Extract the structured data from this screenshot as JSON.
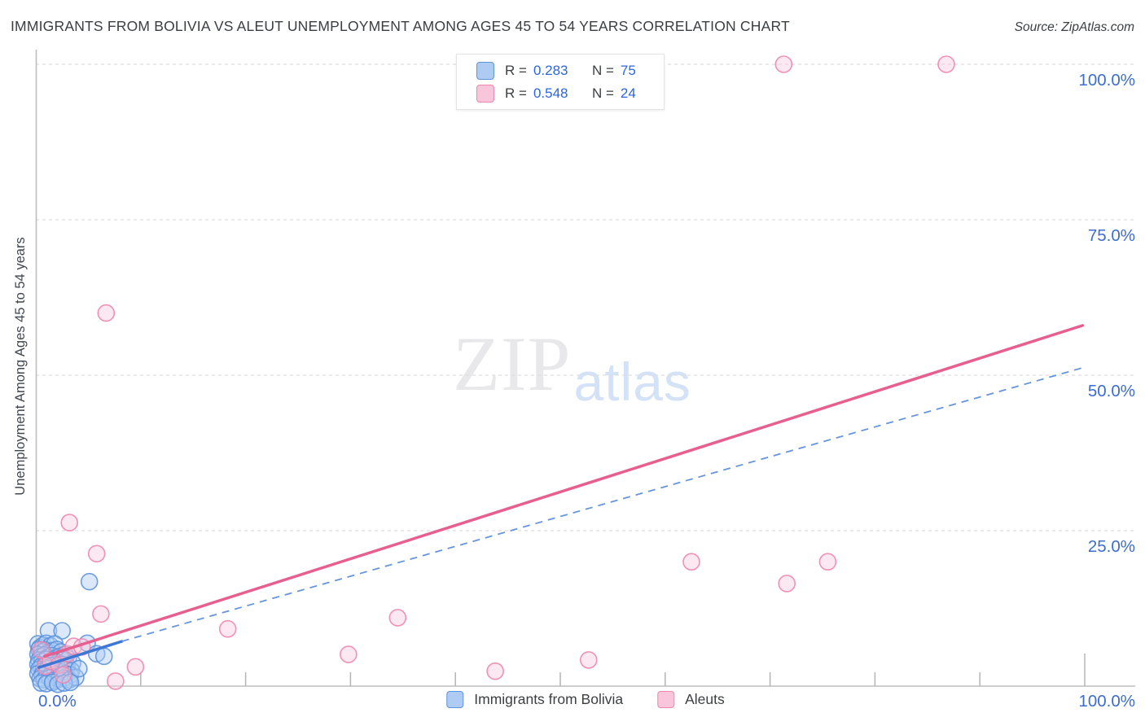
{
  "header": {
    "title": "IMMIGRANTS FROM BOLIVIA VS ALEUT UNEMPLOYMENT AMONG AGES 45 TO 54 YEARS CORRELATION CHART",
    "source": "Source: ZipAtlas.com"
  },
  "legend_box": {
    "rows": [
      {
        "label_r": "R =",
        "value_r": "0.283",
        "label_n": "N =",
        "value_n": "75"
      },
      {
        "label_r": "R =",
        "value_r": "0.548",
        "label_n": "N =",
        "value_n": "24"
      }
    ]
  },
  "axes": {
    "y_label": "Unemployment Among Ages 45 to 54 years",
    "x_min_label": "0.0%",
    "x_max_label": "100.0%"
  },
  "watermark": {
    "part1": "ZIP",
    "part2": "atlas"
  },
  "bottom_legend": {
    "items": [
      {
        "label": "Immigrants from Bolivia"
      },
      {
        "label": "Aleuts"
      }
    ]
  },
  "chart_data": {
    "type": "scatter",
    "title": "Immigrants from Bolivia vs Aleut Unemployment Among Ages 45 to 54 years",
    "xlabel": "Immigrants from Bolivia (%)",
    "ylabel": "Unemployment Among Ages 45 to 54 years (%)",
    "xlim": [
      0,
      100
    ],
    "ylim": [
      0,
      100
    ],
    "grid": true,
    "x_tick_values": [
      10,
      20,
      30,
      40,
      50,
      60,
      70,
      80,
      90,
      100
    ],
    "y_ticks": [
      {
        "label": "100.0%",
        "value": 100
      },
      {
        "label": "75.0%",
        "value": 75
      },
      {
        "label": "50.0%",
        "value": 50
      },
      {
        "label": "25.0%",
        "value": 25
      }
    ],
    "style": {
      "grid_color": "#dedede",
      "axis_border_color": "#bdbdbd",
      "tick_color": "#b5b5b5",
      "axis_value_color": "#3d6dce",
      "stat_value_color": "#2b65e0",
      "text_color": "#3c4043"
    },
    "series": [
      {
        "name": "Immigrants from Bolivia",
        "r": 0.283,
        "n": 75,
        "fill": "#aecbf3",
        "fill_opacity": 0.45,
        "stroke": "#5e93dd",
        "trend": {
          "solid": [
            [
              0.3,
              3.0
            ],
            [
              8.2,
              7.2
            ]
          ],
          "dashed": [
            [
              8.2,
              7.2
            ],
            [
              99.8,
              51.2
            ]
          ],
          "color": "#3d76d4",
          "dash_color": "#6695dd"
        },
        "points": [
          [
            5.1,
            16.8
          ],
          [
            1.2,
            8.9
          ],
          [
            2.5,
            8.9
          ],
          [
            4.9,
            6.9
          ],
          [
            5.8,
            5.2
          ],
          [
            6.5,
            4.8
          ],
          [
            0.2,
            6.8
          ],
          [
            0.4,
            6.2
          ],
          [
            0.7,
            6.6
          ],
          [
            1.0,
            6.9
          ],
          [
            1.4,
            6.5
          ],
          [
            1.8,
            6.8
          ],
          [
            0.3,
            5.9
          ],
          [
            0.6,
            5.5
          ],
          [
            0.9,
            5.8
          ],
          [
            1.2,
            5.4
          ],
          [
            1.6,
            5.7
          ],
          [
            2.0,
            5.9
          ],
          [
            2.4,
            5.5
          ],
          [
            0.2,
            5.1
          ],
          [
            0.5,
            4.8
          ],
          [
            0.8,
            5.0
          ],
          [
            1.1,
            4.6
          ],
          [
            1.5,
            4.9
          ],
          [
            1.9,
            4.5
          ],
          [
            2.3,
            4.8
          ],
          [
            2.8,
            5.1
          ],
          [
            0.3,
            4.2
          ],
          [
            0.6,
            4.0
          ],
          [
            1.0,
            4.3
          ],
          [
            1.3,
            3.9
          ],
          [
            1.7,
            4.1
          ],
          [
            2.1,
            3.8
          ],
          [
            2.6,
            4.2
          ],
          [
            3.1,
            4.4
          ],
          [
            0.2,
            3.5
          ],
          [
            0.5,
            3.2
          ],
          [
            0.9,
            3.4
          ],
          [
            1.2,
            3.0
          ],
          [
            1.6,
            3.3
          ],
          [
            2.0,
            3.1
          ],
          [
            2.5,
            3.5
          ],
          [
            3.0,
            3.2
          ],
          [
            3.5,
            3.7
          ],
          [
            0.3,
            2.7
          ],
          [
            0.7,
            2.5
          ],
          [
            1.1,
            2.8
          ],
          [
            1.5,
            2.4
          ],
          [
            1.9,
            2.6
          ],
          [
            2.4,
            2.3
          ],
          [
            2.9,
            2.7
          ],
          [
            3.4,
            2.5
          ],
          [
            0.2,
            2.0
          ],
          [
            0.6,
            1.8
          ],
          [
            1.0,
            2.1
          ],
          [
            1.4,
            1.7
          ],
          [
            1.8,
            1.9
          ],
          [
            2.3,
            1.6
          ],
          [
            2.8,
            2.0
          ],
          [
            3.3,
            1.8
          ],
          [
            0.4,
            1.2
          ],
          [
            0.8,
            1.0
          ],
          [
            1.3,
            1.3
          ],
          [
            1.7,
            0.9
          ],
          [
            2.2,
            1.1
          ],
          [
            2.7,
            1.3
          ],
          [
            3.2,
            1.0
          ],
          [
            3.8,
            1.4
          ],
          [
            0.5,
            0.5
          ],
          [
            1.0,
            0.4
          ],
          [
            1.6,
            0.6
          ],
          [
            2.1,
            0.3
          ],
          [
            2.7,
            0.5
          ],
          [
            3.3,
            0.6
          ],
          [
            4.1,
            2.8
          ]
        ]
      },
      {
        "name": "Aleuts",
        "r": 0.548,
        "n": 24,
        "fill": "#f8c5da",
        "fill_opacity": 0.4,
        "stroke": "#ee86ae",
        "trend": {
          "solid": [
            [
              0.85,
              4.8
            ],
            [
              99.8,
              58.0
            ]
          ],
          "dashed": null,
          "color": "#e75f8e",
          "dash_color": null
        },
        "points": [
          [
            71.3,
            100
          ],
          [
            86.8,
            100
          ],
          [
            6.7,
            60.0
          ],
          [
            3.2,
            26.3
          ],
          [
            5.8,
            21.3
          ],
          [
            6.2,
            11.6
          ],
          [
            18.3,
            9.2
          ],
          [
            34.5,
            11.0
          ],
          [
            29.8,
            5.1
          ],
          [
            62.5,
            20.0
          ],
          [
            71.6,
            16.5
          ],
          [
            75.5,
            20.0
          ],
          [
            43.8,
            2.4
          ],
          [
            52.7,
            4.2
          ],
          [
            9.5,
            3.1
          ],
          [
            7.6,
            0.8
          ],
          [
            0.5,
            5.8
          ],
          [
            0.9,
            3.2
          ],
          [
            1.4,
            4.0
          ],
          [
            2.2,
            3.4
          ],
          [
            3.0,
            5.2
          ],
          [
            3.6,
            6.4
          ],
          [
            4.4,
            6.3
          ],
          [
            2.6,
            1.8
          ]
        ]
      }
    ]
  }
}
